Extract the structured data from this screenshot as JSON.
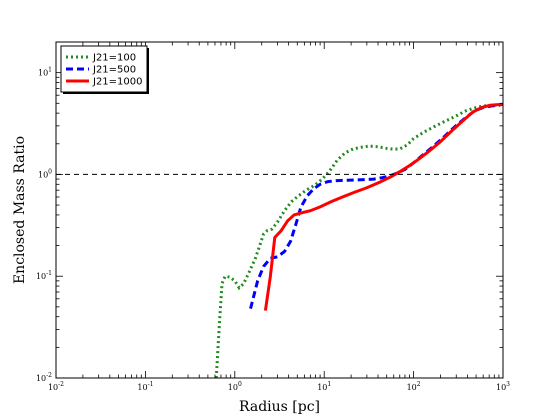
{
  "chart_data": {
    "type": "line",
    "xlabel": "Radius [pc]",
    "ylabel": "Enclosed Mass Ratio",
    "xscale": "log",
    "yscale": "log",
    "xlim": [
      0.01,
      1000
    ],
    "ylim": [
      0.01,
      20
    ],
    "x_ticks": [
      0.01,
      0.1,
      1,
      10,
      100,
      1000
    ],
    "x_tick_labels": [
      {
        "base": "10",
        "exp": "-2"
      },
      {
        "base": "10",
        "exp": "-1"
      },
      {
        "base": "10",
        "exp": "0"
      },
      {
        "base": "10",
        "exp": "1"
      },
      {
        "base": "10",
        "exp": "2"
      },
      {
        "base": "10",
        "exp": "3"
      }
    ],
    "y_ticks": [
      0.01,
      0.1,
      1,
      10
    ],
    "y_tick_labels": [
      {
        "base": "10",
        "exp": "-2"
      },
      {
        "base": "10",
        "exp": "-1"
      },
      {
        "base": "10",
        "exp": "0"
      },
      {
        "base": "10",
        "exp": "1"
      }
    ],
    "grid": false,
    "legend_position": "top-left",
    "reference_line": {
      "y": 1,
      "style": "dashed",
      "color": "#000000"
    },
    "series": [
      {
        "name": "J21=100",
        "color": "#228b22",
        "style": "dotted",
        "points": [
          [
            0.62,
            0.01
          ],
          [
            0.68,
            0.04
          ],
          [
            0.72,
            0.085
          ],
          [
            0.78,
            0.1
          ],
          [
            0.88,
            0.098
          ],
          [
            1.0,
            0.09
          ],
          [
            1.12,
            0.077
          ],
          [
            1.25,
            0.084
          ],
          [
            1.45,
            0.11
          ],
          [
            1.7,
            0.15
          ],
          [
            1.9,
            0.2
          ],
          [
            2.1,
            0.26
          ],
          [
            2.3,
            0.28
          ],
          [
            2.6,
            0.29
          ],
          [
            3.0,
            0.34
          ],
          [
            3.6,
            0.44
          ],
          [
            4.3,
            0.54
          ],
          [
            5.2,
            0.62
          ],
          [
            6.3,
            0.7
          ],
          [
            7.8,
            0.78
          ],
          [
            9.5,
            0.9
          ],
          [
            11.5,
            1.08
          ],
          [
            14,
            1.38
          ],
          [
            17,
            1.62
          ],
          [
            21,
            1.78
          ],
          [
            26,
            1.85
          ],
          [
            32,
            1.9
          ],
          [
            40,
            1.87
          ],
          [
            50,
            1.8
          ],
          [
            60,
            1.77
          ],
          [
            70,
            1.78
          ],
          [
            85,
            1.95
          ],
          [
            100,
            2.25
          ],
          [
            130,
            2.6
          ],
          [
            170,
            2.95
          ],
          [
            220,
            3.3
          ],
          [
            290,
            3.7
          ],
          [
            380,
            4.2
          ],
          [
            480,
            4.5
          ],
          [
            600,
            4.7
          ],
          [
            760,
            4.78
          ],
          [
            930,
            4.82
          ]
        ]
      },
      {
        "name": "J21=500",
        "color": "#0000ff",
        "style": "dashed",
        "points": [
          [
            1.5,
            0.048
          ],
          [
            1.8,
            0.09
          ],
          [
            2.1,
            0.125
          ],
          [
            2.5,
            0.15
          ],
          [
            3.0,
            0.155
          ],
          [
            3.6,
            0.175
          ],
          [
            4.2,
            0.22
          ],
          [
            4.8,
            0.32
          ],
          [
            5.5,
            0.48
          ],
          [
            6.5,
            0.62
          ],
          [
            7.6,
            0.72
          ],
          [
            9.0,
            0.8
          ],
          [
            11,
            0.85
          ],
          [
            14,
            0.87
          ],
          [
            20,
            0.88
          ],
          [
            28,
            0.89
          ],
          [
            36,
            0.9
          ],
          [
            45,
            0.93
          ],
          [
            55,
            0.97
          ],
          [
            65,
            1.03
          ],
          [
            80,
            1.12
          ],
          [
            100,
            1.3
          ],
          [
            130,
            1.58
          ],
          [
            170,
            1.92
          ],
          [
            220,
            2.35
          ],
          [
            290,
            2.95
          ],
          [
            380,
            3.6
          ],
          [
            480,
            4.2
          ],
          [
            600,
            4.55
          ],
          [
            760,
            4.72
          ],
          [
            930,
            4.8
          ]
        ]
      },
      {
        "name": "J21=1000",
        "color": "#ff0000",
        "style": "solid",
        "points": [
          [
            2.2,
            0.046
          ],
          [
            2.5,
            0.1
          ],
          [
            2.8,
            0.24
          ],
          [
            3.3,
            0.28
          ],
          [
            3.9,
            0.35
          ],
          [
            4.6,
            0.4
          ],
          [
            5.6,
            0.42
          ],
          [
            7.0,
            0.44
          ],
          [
            9.0,
            0.48
          ],
          [
            12,
            0.54
          ],
          [
            16,
            0.6
          ],
          [
            22,
            0.67
          ],
          [
            30,
            0.74
          ],
          [
            42,
            0.84
          ],
          [
            56,
            0.95
          ],
          [
            72,
            1.08
          ],
          [
            90,
            1.22
          ],
          [
            115,
            1.42
          ],
          [
            150,
            1.7
          ],
          [
            200,
            2.1
          ],
          [
            270,
            2.7
          ],
          [
            360,
            3.4
          ],
          [
            460,
            4.1
          ],
          [
            580,
            4.55
          ],
          [
            720,
            4.78
          ],
          [
            880,
            4.85
          ],
          [
            1000,
            4.85
          ]
        ]
      }
    ]
  }
}
